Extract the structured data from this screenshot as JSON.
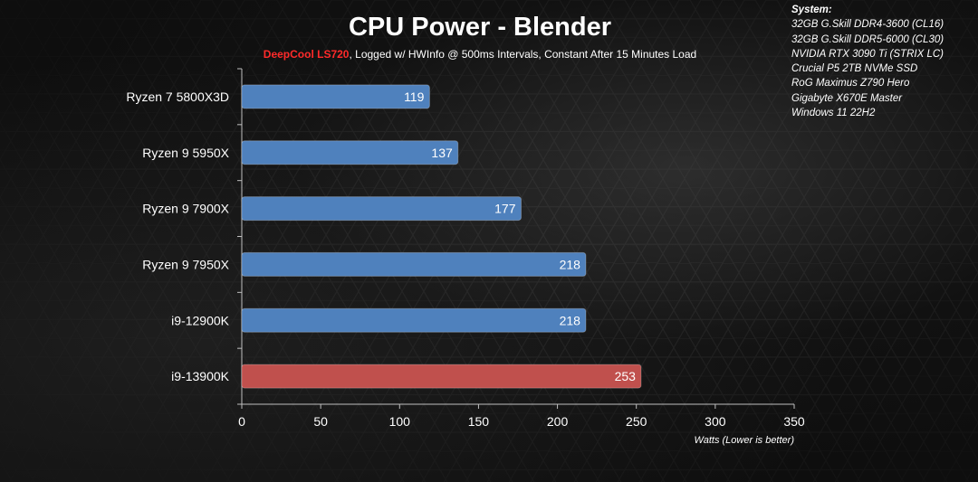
{
  "header": {
    "title": "CPU Power - Blender",
    "subtitle_brand": "DeepCool LS720",
    "subtitle_rest": ", Logged w/ HWInfo @ 500ms Intervals, Constant After 15 Minutes Load"
  },
  "system": {
    "heading": "System:",
    "lines": [
      "32GB G.Skill DDR4-3600 (CL16)",
      "32GB G.Skill DDR5-6000 (CL30)",
      "NVIDIA RTX 3090 Ti (STRIX LC)",
      "Crucial P5 2TB NVMe SSD",
      "RoG Maximus Z790 Hero",
      "Gigabyte X670E Master",
      "Windows 11 22H2"
    ]
  },
  "colors": {
    "bar_default": "#4f81bd",
    "bar_highlight": "#c0504d",
    "brand": "#ff2a2a",
    "text": "#ffffff"
  },
  "chart_data": {
    "type": "bar",
    "orientation": "horizontal",
    "title": "CPU Power - Blender",
    "xlabel": "Watts (Lower is better)",
    "ylabel": "",
    "xlim": [
      0,
      350
    ],
    "xticks": [
      0,
      50,
      100,
      150,
      200,
      250,
      300,
      350
    ],
    "grid": false,
    "categories": [
      "Ryzen 7 5800X3D",
      "Ryzen 9 5950X",
      "Ryzen 9 7900X",
      "Ryzen 9 7950X",
      "i9-12900K",
      "i9-13900K"
    ],
    "values": [
      119,
      137,
      177,
      218,
      218,
      253
    ],
    "highlight": [
      "i9-13900K"
    ]
  }
}
